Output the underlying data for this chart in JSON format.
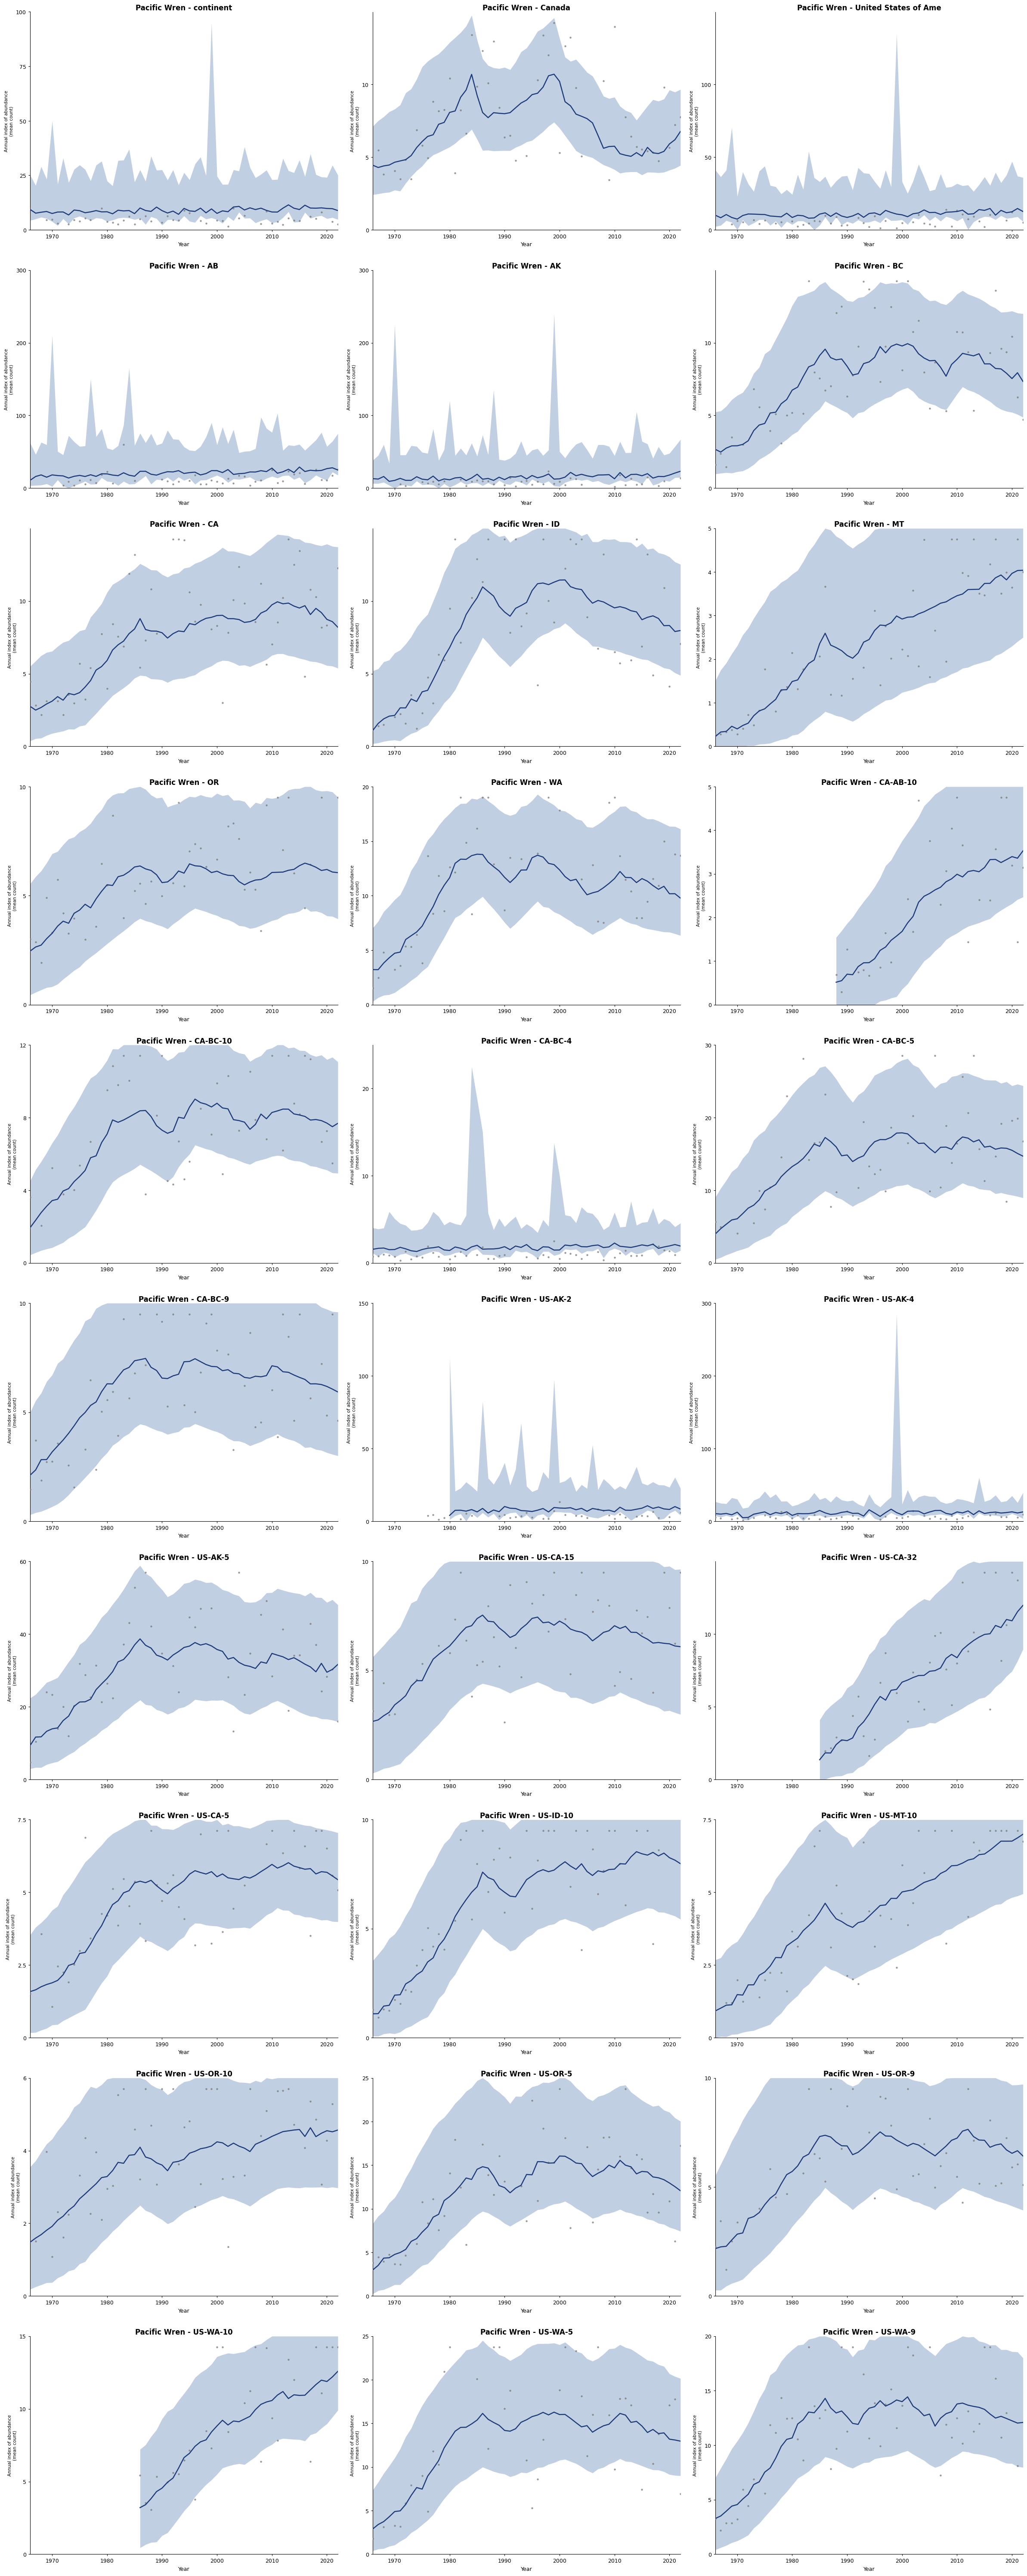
{
  "panels": [
    {
      "title": "Pacific Wren - continent",
      "ylim": [
        0,
        100
      ],
      "yticks": [
        0,
        25,
        50,
        75,
        100
      ]
    },
    {
      "title": "Pacific Wren - Canada",
      "ylim": [
        0,
        15
      ],
      "yticks": [
        0,
        5,
        10
      ]
    },
    {
      "title": "Pacific Wren - United States of Ame",
      "ylim": [
        0,
        150
      ],
      "yticks": [
        0,
        50,
        100
      ]
    },
    {
      "title": "Pacific Wren - AB",
      "ylim": [
        0,
        300
      ],
      "yticks": [
        0,
        100,
        200,
        300
      ]
    },
    {
      "title": "Pacific Wren - AK",
      "ylim": [
        0,
        300
      ],
      "yticks": [
        0,
        100,
        200,
        300
      ]
    },
    {
      "title": "Pacific Wren - BC",
      "ylim": [
        0,
        15
      ],
      "yticks": [
        0,
        5,
        10
      ]
    },
    {
      "title": "Pacific Wren - CA",
      "ylim": [
        0,
        15
      ],
      "yticks": [
        0,
        5,
        10
      ]
    },
    {
      "title": "Pacific Wren - ID",
      "ylim": [
        0,
        15
      ],
      "yticks": [
        0,
        5,
        10
      ]
    },
    {
      "title": "Pacific Wren - MT",
      "ylim": [
        0,
        5
      ],
      "yticks": [
        0,
        1,
        2,
        3,
        4,
        5
      ]
    },
    {
      "title": "Pacific Wren - OR",
      "ylim": [
        0,
        10
      ],
      "yticks": [
        0,
        5,
        10
      ]
    },
    {
      "title": "Pacific Wren - WA",
      "ylim": [
        0,
        20
      ],
      "yticks": [
        0,
        5,
        10,
        15,
        20
      ]
    },
    {
      "title": "Pacific Wren - CA-AB-10",
      "ylim": [
        0,
        5
      ],
      "yticks": [
        0,
        1,
        2,
        3,
        4,
        5
      ]
    },
    {
      "title": "Pacific Wren - CA-BC-10",
      "ylim": [
        0,
        12
      ],
      "yticks": [
        0,
        4,
        8,
        12
      ]
    },
    {
      "title": "Pacific Wren - CA-BC-4",
      "ylim": [
        0,
        25
      ],
      "yticks": [
        0,
        10,
        20
      ]
    },
    {
      "title": "Pacific Wren - CA-BC-5",
      "ylim": [
        0,
        30
      ],
      "yticks": [
        0,
        10,
        20,
        30
      ]
    },
    {
      "title": "Pacific Wren - CA-BC-9",
      "ylim": [
        0,
        10
      ],
      "yticks": [
        0,
        5,
        10
      ]
    },
    {
      "title": "Pacific Wren - US-AK-2",
      "ylim": [
        0,
        150
      ],
      "yticks": [
        0,
        50,
        100,
        150
      ]
    },
    {
      "title": "Pacific Wren - US-AK-4",
      "ylim": [
        0,
        300
      ],
      "yticks": [
        0,
        100,
        200,
        300
      ]
    },
    {
      "title": "Pacific Wren - US-AK-5",
      "ylim": [
        0,
        60
      ],
      "yticks": [
        0,
        20,
        40,
        60
      ]
    },
    {
      "title": "Pacific Wren - US-CA-15",
      "ylim": [
        0,
        10
      ],
      "yticks": [
        0,
        5,
        10
      ]
    },
    {
      "title": "Pacific Wren - US-CA-32",
      "ylim": [
        0,
        15
      ],
      "yticks": [
        0,
        5,
        10
      ]
    },
    {
      "title": "Pacific Wren - US-CA-5",
      "ylim": [
        0,
        7.5
      ],
      "yticks": [
        0,
        2.5,
        5.0,
        7.5
      ]
    },
    {
      "title": "Pacific Wren - US-ID-10",
      "ylim": [
        0,
        10
      ],
      "yticks": [
        0,
        5,
        10
      ]
    },
    {
      "title": "Pacific Wren - US-MT-10",
      "ylim": [
        0,
        7.5
      ],
      "yticks": [
        0,
        2.5,
        5.0,
        7.5
      ]
    },
    {
      "title": "Pacific Wren - US-OR-10",
      "ylim": [
        0,
        6
      ],
      "yticks": [
        0,
        2,
        4,
        6
      ]
    },
    {
      "title": "Pacific Wren - US-OR-5",
      "ylim": [
        0,
        25
      ],
      "yticks": [
        0,
        5,
        10,
        15,
        20,
        25
      ]
    },
    {
      "title": "Pacific Wren - US-OR-9",
      "ylim": [
        0,
        10
      ],
      "yticks": [
        0,
        5,
        10
      ]
    },
    {
      "title": "Pacific Wren - US-WA-10",
      "ylim": [
        0,
        15
      ],
      "yticks": [
        0,
        5,
        10,
        15
      ]
    },
    {
      "title": "Pacific Wren - US-WA-5",
      "ylim": [
        0,
        25
      ],
      "yticks": [
        0,
        5,
        10,
        15,
        20,
        25
      ]
    },
    {
      "title": "Pacific Wren - US-WA-9",
      "ylim": [
        0,
        20
      ],
      "yticks": [
        0,
        5,
        10,
        15,
        20
      ]
    }
  ],
  "ncols": 3,
  "nrows": 10,
  "line_color": "#1f3d7a",
  "ribbon_color": "#8fa8cc",
  "dot_color": "#777777",
  "ylabel": "Annual index of abundance\n(mean count)",
  "xlabel": "Year",
  "title_fontsize": 12,
  "axis_fontsize": 9,
  "tick_fontsize": 9
}
